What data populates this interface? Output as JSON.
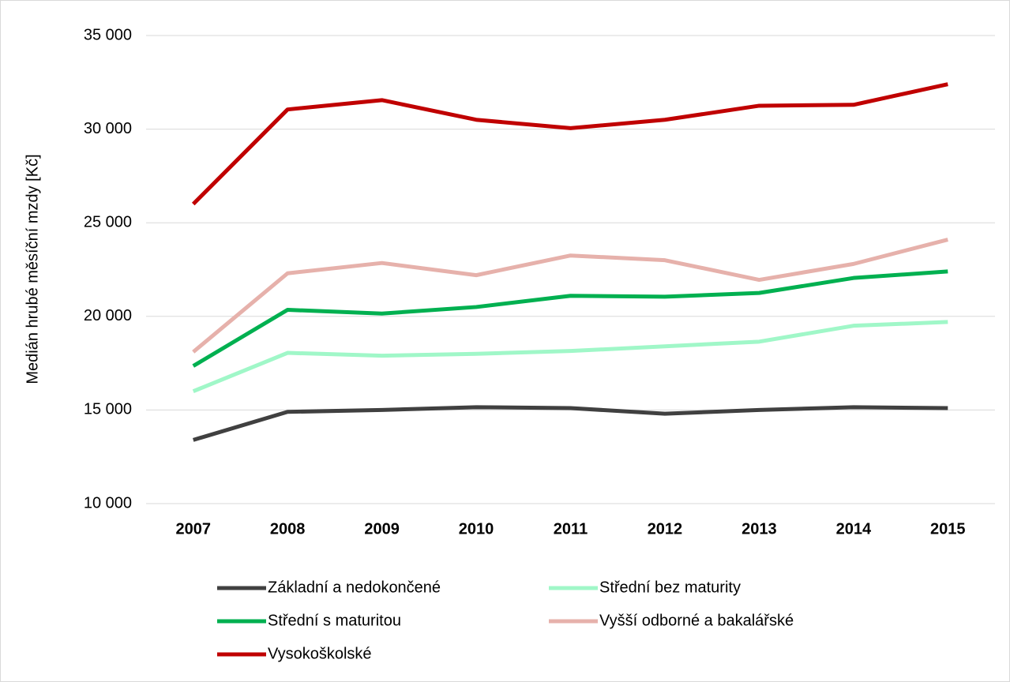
{
  "chart_data": {
    "type": "line",
    "y_label": "Medián hrubé měsíční mzdy [Kč]",
    "categories": [
      "2007",
      "2008",
      "2009",
      "2010",
      "2011",
      "2012",
      "2013",
      "2014",
      "2015"
    ],
    "series": [
      {
        "name": "Základní a nedokončené",
        "color": "#404040",
        "values": [
          13400,
          14900,
          15000,
          15150,
          15100,
          14800,
          15000,
          15150,
          15100
        ]
      },
      {
        "name": "Střední bez maturity",
        "color": "#a0f7c8",
        "values": [
          16000,
          18050,
          17900,
          18000,
          18150,
          18400,
          18650,
          19500,
          19700
        ]
      },
      {
        "name": "Střední s maturitou",
        "color": "#00b050",
        "values": [
          17350,
          20350,
          20150,
          20500,
          21100,
          21050,
          21250,
          22050,
          22400
        ]
      },
      {
        "name": "Vyšší odborné a bakalářské",
        "color": "#e6b1ab",
        "values": [
          18100,
          22300,
          22850,
          22200,
          23250,
          23000,
          21950,
          22800,
          24100
        ]
      },
      {
        "name": "Vysokoškolské",
        "color": "#c00000",
        "values": [
          26000,
          31050,
          31550,
          30500,
          30050,
          30500,
          31250,
          31300,
          32400
        ]
      }
    ],
    "ylim": [
      10000,
      35000
    ],
    "yticks": [
      {
        "value": 10000,
        "label": "10 000"
      },
      {
        "value": 15000,
        "label": "15 000"
      },
      {
        "value": 20000,
        "label": "20 000"
      },
      {
        "value": 25000,
        "label": "25 000"
      },
      {
        "value": 30000,
        "label": "30 000"
      },
      {
        "value": 35000,
        "label": "35 000"
      }
    ],
    "grid": true,
    "legend": "bottom"
  }
}
